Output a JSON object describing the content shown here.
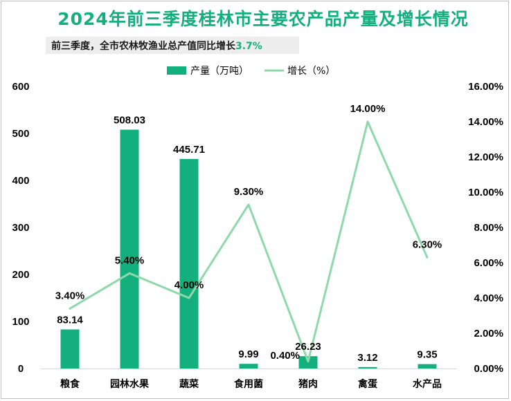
{
  "title": "2024年前三季度桂林市主要农产品产量及增长情况",
  "subtitle": {
    "text": "前三季度，全市农林牧渔业总产值同比增长",
    "highlight": "3.7%"
  },
  "colors": {
    "bar": "#13b07e",
    "line": "#8ed9ab",
    "title": "#13b07e"
  },
  "chart_data": {
    "type": "bar+line",
    "categories": [
      "粮食",
      "园林水果",
      "蔬菜",
      "食用菌",
      "猪肉",
      "禽蛋",
      "水产品"
    ],
    "series": [
      {
        "name": "产量（万吨）",
        "type": "bar",
        "axis": "left",
        "values": [
          83.14,
          508.03,
          445.71,
          9.99,
          26.23,
          3.12,
          9.35
        ],
        "labels": [
          "83.14",
          "508.03",
          "445.71",
          "9.99",
          "26.23",
          "3.12",
          "9.35"
        ]
      },
      {
        "name": "增长（%）",
        "type": "line",
        "axis": "right",
        "values": [
          3.4,
          5.4,
          4.0,
          9.3,
          0.4,
          14.0,
          6.3
        ],
        "labels": [
          "3.40%",
          "5.40%",
          "4.00%",
          "9.30%",
          "0.40%",
          "14.00%",
          "6.30%"
        ]
      }
    ],
    "y_left": {
      "range": [
        0,
        600
      ],
      "ticks": [
        0,
        100,
        200,
        300,
        400,
        500,
        600
      ],
      "tick_labels": [
        "0",
        "100",
        "200",
        "300",
        "400",
        "500",
        "600"
      ]
    },
    "y_right": {
      "range": [
        0,
        16
      ],
      "ticks": [
        0,
        2,
        4,
        6,
        8,
        10,
        12,
        14,
        16
      ],
      "tick_labels": [
        "0.00%",
        "2.00%",
        "4.00%",
        "6.00%",
        "8.00%",
        "10.00%",
        "12.00%",
        "14.00%",
        "16.00%"
      ]
    },
    "grid": false,
    "legend_position": "top-center"
  }
}
